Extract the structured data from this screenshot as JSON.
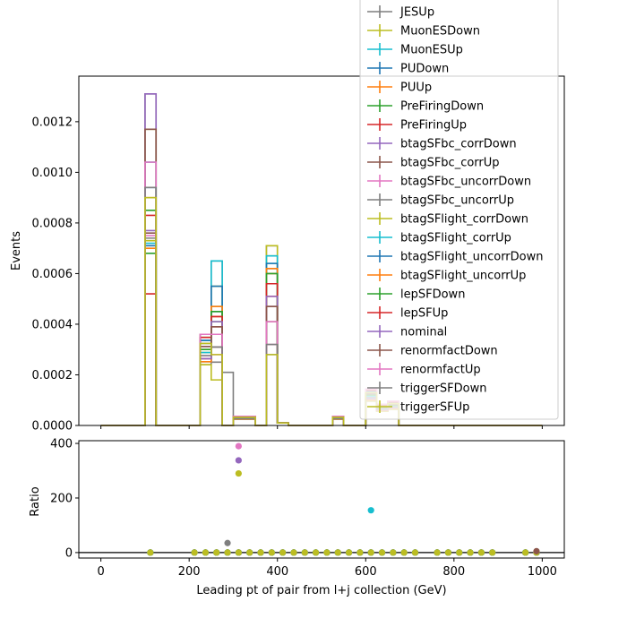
{
  "chart_data": [
    {
      "type": "step",
      "panel": "main",
      "ylabel": "Events",
      "xlabel": "",
      "xlim": [
        -50,
        1050
      ],
      "ylim": [
        0,
        0.00138
      ],
      "yticks": [
        "0.0000",
        "0.0002",
        "0.0004",
        "0.0006",
        "0.0008",
        "0.0010",
        "0.0012"
      ],
      "ytick_values": [
        0,
        0.0002,
        0.0004,
        0.0006,
        0.0008,
        0.001,
        0.0012
      ],
      "bin_edges": [
        0,
        25,
        50,
        75,
        100,
        125,
        150,
        175,
        200,
        225,
        250,
        275,
        300,
        325,
        350,
        375,
        400,
        425,
        450,
        475,
        500,
        525,
        550,
        575,
        600,
        625,
        650,
        675,
        700,
        725,
        750,
        775,
        800,
        825,
        850,
        875,
        900,
        925,
        950,
        975,
        1000
      ],
      "nominal_values": [
        0,
        0,
        0,
        0,
        0.00072,
        0,
        0,
        0,
        0,
        0.0003,
        0.00043,
        0,
        3e-05,
        3e-05,
        0,
        0.00062,
        1e-05,
        0,
        0,
        0,
        0,
        3e-05,
        0,
        0,
        0.00012,
        7e-05,
        8e-05,
        0,
        0,
        0,
        0,
        0,
        0,
        0,
        0,
        0,
        0,
        0,
        0,
        0
      ],
      "variation_peaks": {
        "bin_100_125": [
          0.00131,
          0.00117,
          0.00104,
          0.00094,
          0.0009,
          0.00085,
          0.00083,
          0.00077,
          0.00076,
          0.00075,
          0.00074,
          0.00073,
          0.00072,
          0.00071,
          0.0007,
          0.00068,
          0.00052
        ],
        "bin_250_275": [
          0.00065,
          0.00055,
          0.00047,
          0.00045,
          0.00043,
          0.00041,
          0.00039,
          0.00036,
          0.00031,
          0.00028,
          0.00025,
          0.00018
        ],
        "bin_375_400": [
          0.00071,
          0.00067,
          0.00064,
          0.00062,
          0.0006,
          0.00056,
          0.00051,
          0.00047,
          0.00041,
          0.00032,
          0.00028
        ]
      },
      "series": [
        {
          "name": "JESUp",
          "color": "#7f7f7f"
        },
        {
          "name": "MuonESDown",
          "color": "#bcbd22"
        },
        {
          "name": "MuonESUp",
          "color": "#17becf"
        },
        {
          "name": "PUDown",
          "color": "#1f77b4"
        },
        {
          "name": "PUUp",
          "color": "#ff7f0e"
        },
        {
          "name": "PreFiringDown",
          "color": "#2ca02c"
        },
        {
          "name": "PreFiringUp",
          "color": "#d62728"
        },
        {
          "name": "btagSFbc_corrDown",
          "color": "#9467bd"
        },
        {
          "name": "btagSFbc_corrUp",
          "color": "#8c564b"
        },
        {
          "name": "btagSFbc_uncorrDown",
          "color": "#e377c2"
        },
        {
          "name": "btagSFbc_uncorrUp",
          "color": "#7f7f7f"
        },
        {
          "name": "btagSFlight_corrDown",
          "color": "#bcbd22"
        },
        {
          "name": "btagSFlight_corrUp",
          "color": "#17becf"
        },
        {
          "name": "btagSFlight_uncorrDown",
          "color": "#1f77b4"
        },
        {
          "name": "btagSFlight_uncorrUp",
          "color": "#ff7f0e"
        },
        {
          "name": "lepSFDown",
          "color": "#2ca02c"
        },
        {
          "name": "lepSFUp",
          "color": "#d62728"
        },
        {
          "name": "nominal",
          "color": "#9467bd"
        },
        {
          "name": "renormfactDown",
          "color": "#8c564b"
        },
        {
          "name": "renormfactUp",
          "color": "#e377c2"
        },
        {
          "name": "triggerSFDown",
          "color": "#7f7f7f"
        },
        {
          "name": "triggerSFUp",
          "color": "#bcbd22"
        }
      ],
      "legend_placement": "upper-right"
    },
    {
      "type": "scatter",
      "panel": "ratio",
      "ylabel": "Ratio",
      "xlabel": "Leading pt of pair from l+j collection (GeV)",
      "xlim": [
        -50,
        1050
      ],
      "ylim": [
        -20,
        410
      ],
      "xticks": [
        "0",
        "200",
        "400",
        "600",
        "800",
        "1000"
      ],
      "xtick_values": [
        0,
        200,
        400,
        600,
        800,
        1000
      ],
      "yticks": [
        "0",
        "200",
        "400"
      ],
      "ytick_values": [
        0,
        200,
        400
      ],
      "reference_line": 0,
      "baseline_x": [
        112,
        212,
        237,
        262,
        287,
        312,
        337,
        362,
        387,
        412,
        437,
        462,
        487,
        512,
        537,
        562,
        587,
        612,
        637,
        662,
        687,
        712,
        762,
        787,
        812,
        837,
        862,
        887,
        962,
        987
      ],
      "outliers": [
        {
          "x": 312,
          "y": 390,
          "color": "#e377c2"
        },
        {
          "x": 312,
          "y": 338,
          "color": "#9467bd"
        },
        {
          "x": 312,
          "y": 290,
          "color": "#bcbd22"
        },
        {
          "x": 612,
          "y": 155,
          "color": "#17becf"
        },
        {
          "x": 287,
          "y": 35,
          "color": "#7f7f7f"
        },
        {
          "x": 987,
          "y": 5,
          "color": "#8c564b"
        }
      ]
    }
  ]
}
